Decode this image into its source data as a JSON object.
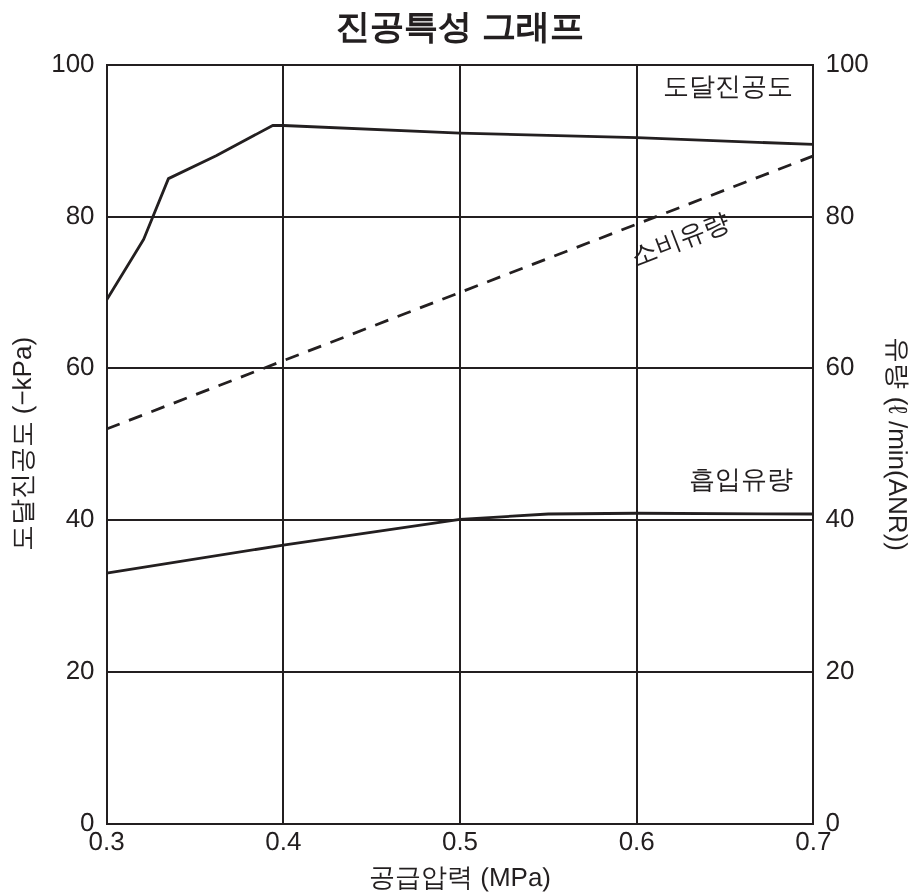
{
  "chart_data": {
    "type": "line",
    "title": "진공특성 그래프",
    "xlabel": "공급압력 (MPa)",
    "ylabel": "도달진공도 (−kPa)",
    "y2label": "유량 (ℓ /min(ANR))",
    "xlim": [
      0.3,
      0.7
    ],
    "xticks": [
      0.3,
      0.4,
      0.5,
      0.6,
      0.7
    ],
    "ylim": [
      0,
      100
    ],
    "yticks": [
      0,
      20,
      40,
      60,
      80,
      100
    ],
    "y2lim": [
      0,
      100
    ],
    "y2ticks": [
      0,
      20,
      40,
      60,
      80,
      100
    ],
    "grid": true,
    "legend": false,
    "marker": "none",
    "series": [
      {
        "name": "도달진공도",
        "color": "#231f20",
        "line_style": "solid",
        "x": [
          0.3,
          0.321,
          0.335,
          0.362,
          0.394,
          0.4,
          0.5,
          0.6,
          0.7
        ],
        "values": [
          69,
          77,
          85,
          88,
          92,
          92,
          91,
          90.4,
          89.5
        ]
      },
      {
        "name": "소비유량",
        "color": "#231f20",
        "line_style": "dashed",
        "axis": "y2",
        "x": [
          0.3,
          0.7
        ],
        "values": [
          52,
          88
        ]
      },
      {
        "name": "흡입유량",
        "color": "#231f20",
        "line_style": "solid",
        "axis": "y2",
        "x": [
          0.3,
          0.4,
          0.5,
          0.55,
          0.6,
          0.7
        ],
        "values": [
          33,
          36.7,
          40.1,
          40.8,
          40.9,
          40.8
        ]
      }
    ]
  }
}
